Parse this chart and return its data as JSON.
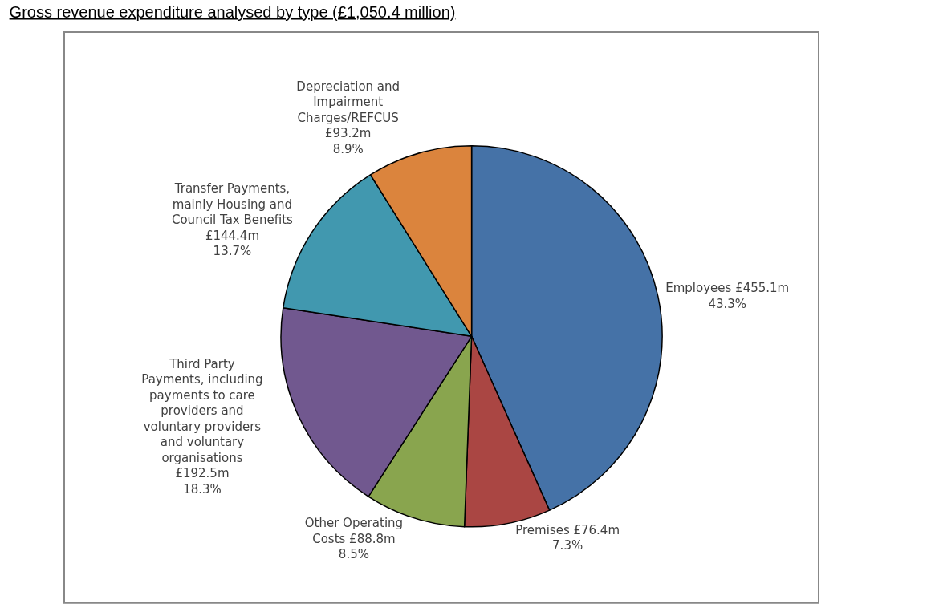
{
  "chart_data": {
    "type": "pie",
    "title": "Gross revenue expenditure analysed by type (£1,050.4 million)",
    "categories": [
      "Employees £455.1m",
      "Premises £76.4m",
      "Other Operating\nCosts £88.8m",
      "Third Party\nPayments, including\npayments to care\nproviders and\nvoluntary providers\nand voluntary\norganisations\n£192.5m",
      "Transfer Payments,\nmainly Housing and\nCouncil Tax Benefits\n£144.4m",
      "Depreciation and\nImpairment\nCharges/REFCUS\n£93.2m"
    ],
    "values": [
      43.3,
      7.3,
      8.5,
      18.3,
      13.7,
      8.9
    ],
    "value_labels": [
      "43.3%",
      "7.3%",
      "8.5%",
      "18.3%",
      "13.7%",
      "8.9%"
    ],
    "colors": [
      "#4572a7",
      "#aa4643",
      "#89a54e",
      "#71588f",
      "#4198af",
      "#db843d"
    ],
    "legend": false
  }
}
